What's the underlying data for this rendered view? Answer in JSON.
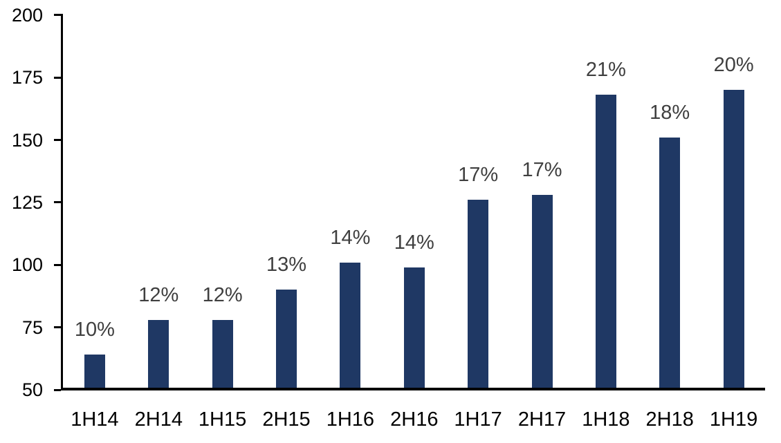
{
  "chart_data": {
    "type": "bar",
    "categories": [
      "1H14",
      "2H14",
      "1H15",
      "2H15",
      "1H16",
      "2H16",
      "1H17",
      "2H17",
      "1H18",
      "2H18",
      "1H19"
    ],
    "values": [
      64,
      78,
      78,
      90,
      101,
      99,
      126,
      128,
      168,
      151,
      170
    ],
    "data_labels": [
      "10%",
      "12%",
      "12%",
      "13%",
      "14%",
      "14%",
      "17%",
      "17%",
      "21%",
      "18%",
      "20%"
    ],
    "ylim": [
      50,
      200
    ],
    "yticks": [
      50,
      75,
      100,
      125,
      150,
      175,
      200
    ],
    "grid": "off",
    "legend": "none",
    "colors": {
      "bar": "#1f3864",
      "data_label": "#3f3f3f",
      "axis_text": "#000000",
      "axis_line": "#000000"
    }
  }
}
